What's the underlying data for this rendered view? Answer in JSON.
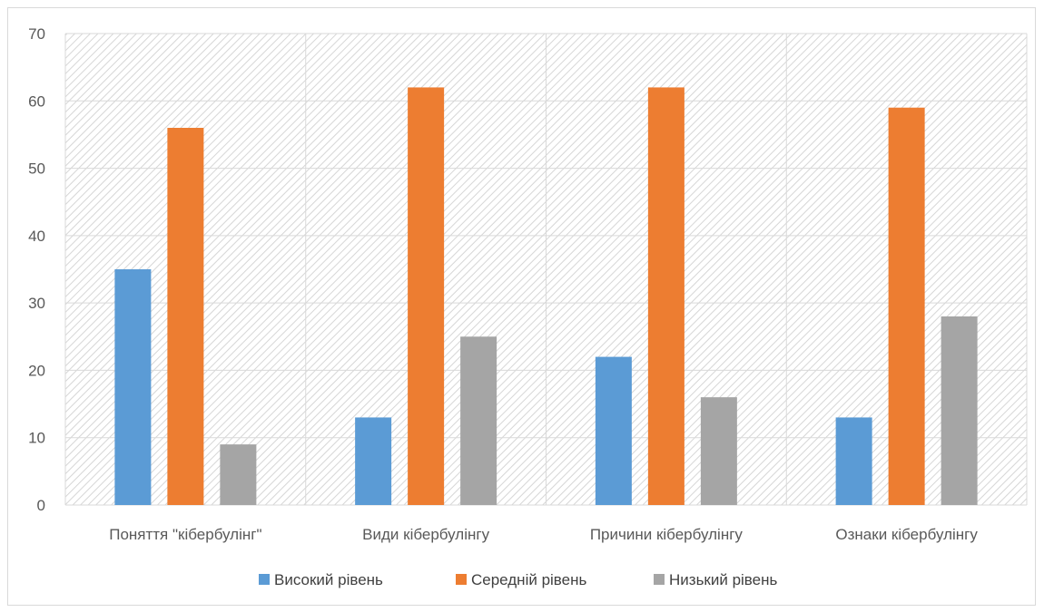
{
  "chart_data": {
    "type": "bar",
    "categories": [
      "Поняття \"кібербулінг\"",
      "Види кібербулінгу",
      "Причини кібербулінгу",
      "Ознаки кібербулінгу"
    ],
    "series": [
      {
        "name": "Високий рівень",
        "values": [
          35,
          13,
          22,
          13
        ],
        "color": "#5B9BD5"
      },
      {
        "name": "Середній рівень",
        "values": [
          56,
          62,
          62,
          59
        ],
        "color": "#ED7D31"
      },
      {
        "name": "Низький рівень",
        "values": [
          9,
          25,
          16,
          28
        ],
        "color": "#A5A5A5"
      }
    ],
    "ylim": [
      0,
      70
    ],
    "yticks": [
      0,
      10,
      20,
      30,
      40,
      50,
      60,
      70
    ],
    "grid": true,
    "plot_background": "hatched-light-gray",
    "legend_position": "bottom",
    "title": "",
    "xlabel": "",
    "ylabel": ""
  }
}
